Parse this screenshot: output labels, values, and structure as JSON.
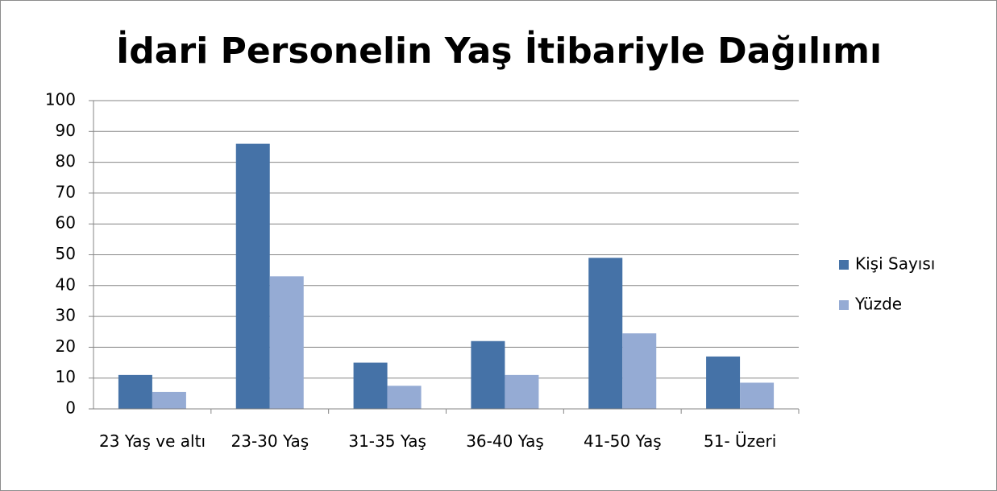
{
  "chart_data": {
    "type": "bar",
    "title": "İdari Personelin Yaş İtibariyle Dağılımı",
    "categories": [
      "23 Yaş ve altı",
      "23-30 Yaş",
      "31-35 Yaş",
      "36-40 Yaş",
      "41-50 Yaş",
      "51- Üzeri"
    ],
    "series": [
      {
        "name": "Kişi Sayısı",
        "color": "#4572a7",
        "values": [
          11,
          86,
          15,
          22,
          49,
          17
        ]
      },
      {
        "name": "Yüzde",
        "color": "#95abd4",
        "values": [
          5.5,
          43,
          7.5,
          11,
          24.5,
          8.5
        ]
      }
    ],
    "ylim": [
      0,
      100
    ],
    "yticks": [
      0,
      10,
      20,
      30,
      40,
      50,
      60,
      70,
      80,
      90,
      100
    ],
    "grid": true,
    "legend": "right"
  }
}
